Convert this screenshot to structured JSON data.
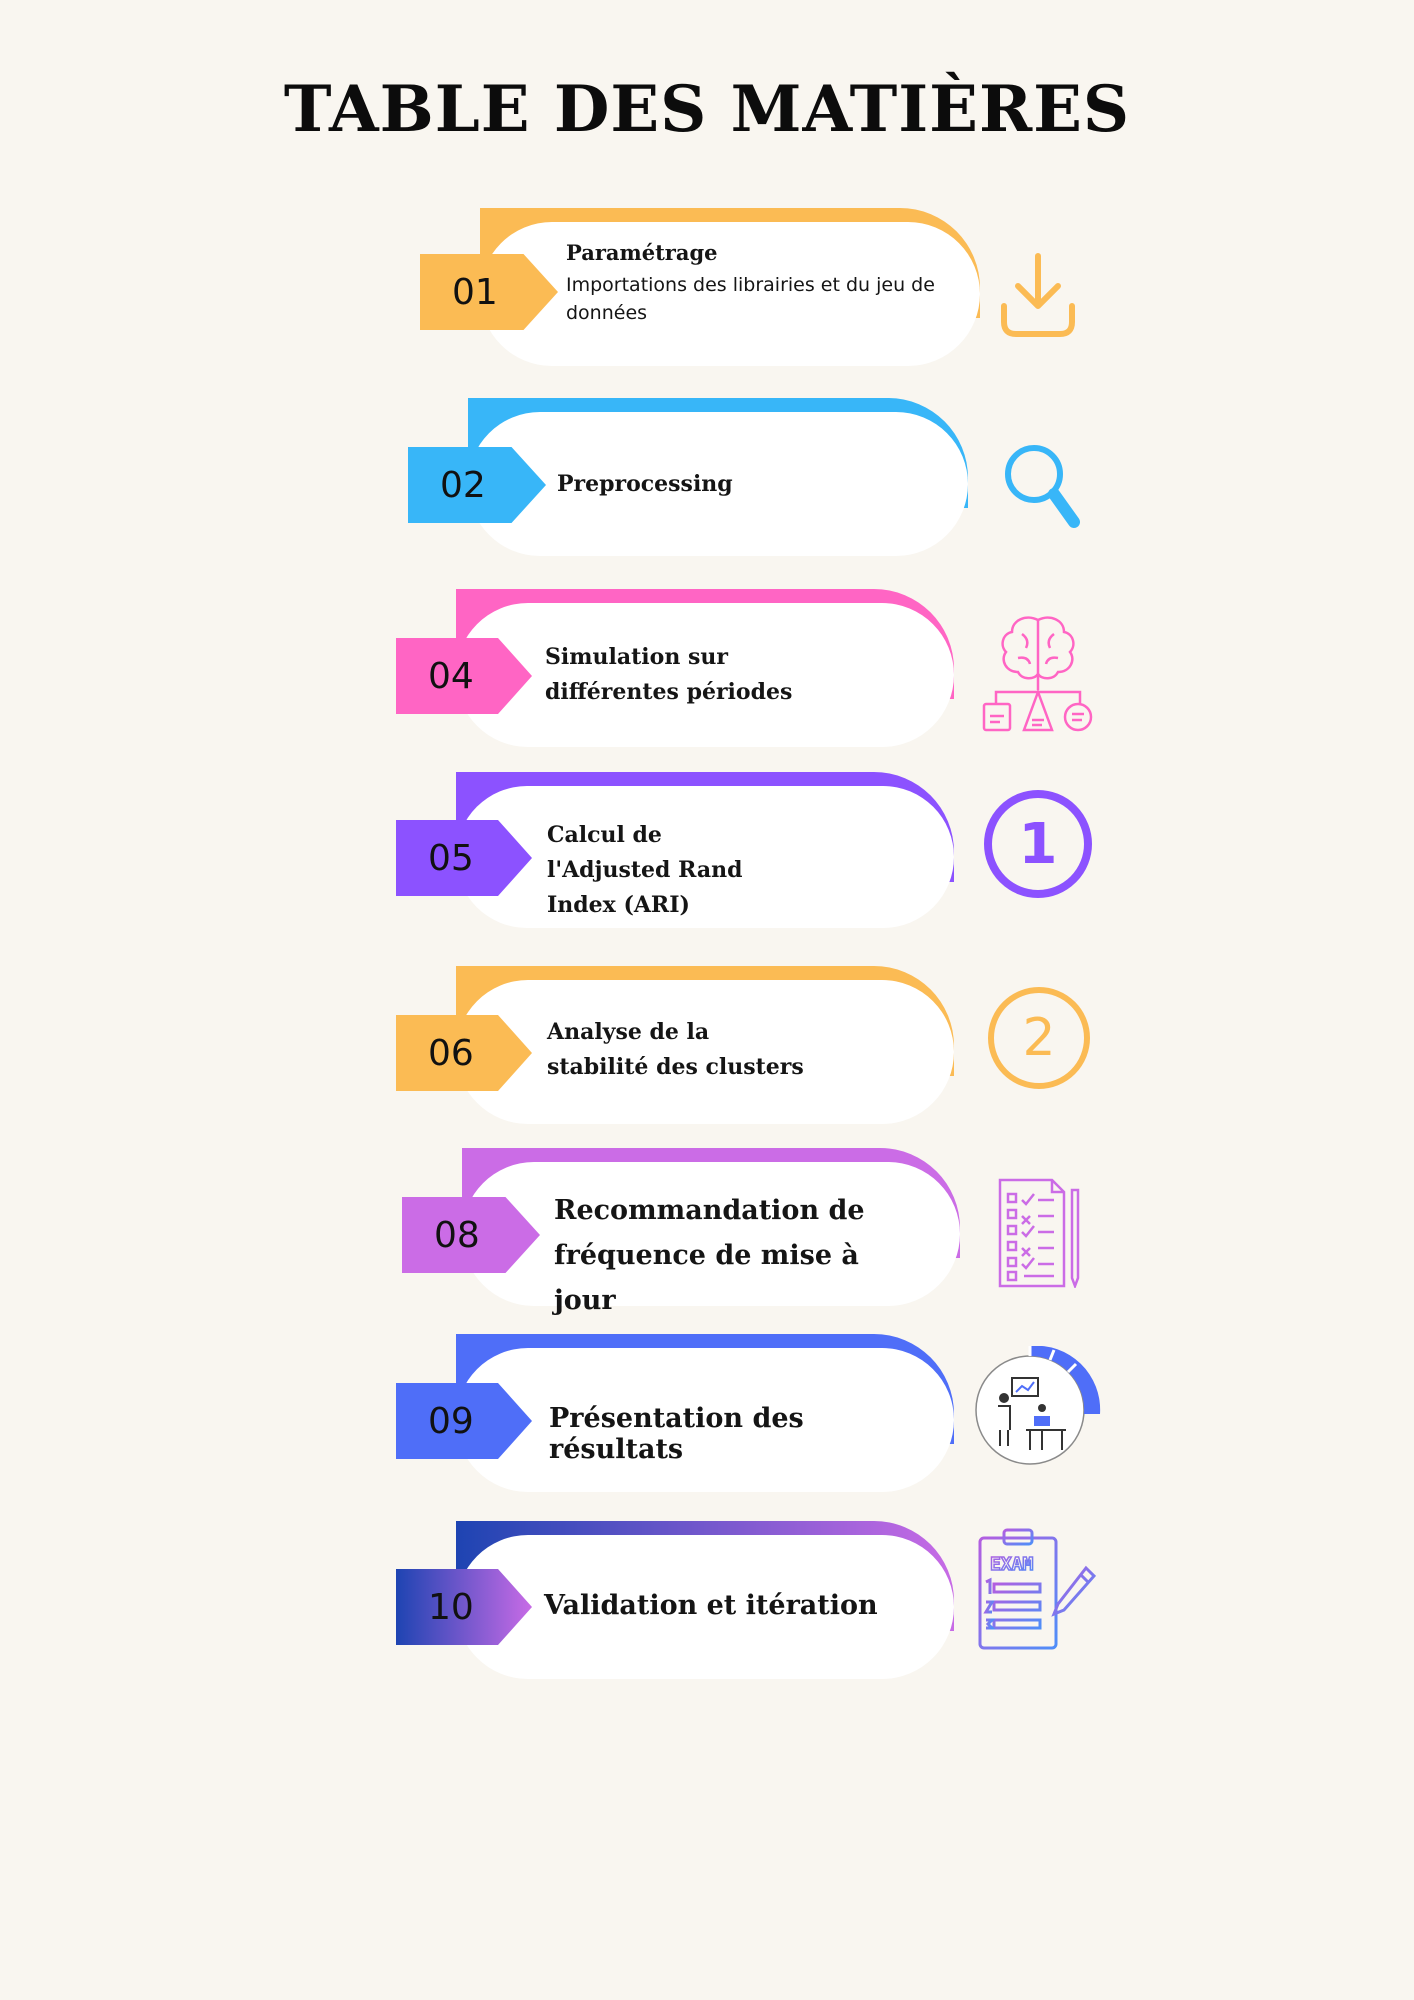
{
  "title": "TABLE DES MATIÈRES",
  "items": [
    {
      "number": "01",
      "heading": "Paramétrage",
      "subtitle": "Importations des librairies et du jeu de données",
      "color": "#fbbb54",
      "icon": "download-icon"
    },
    {
      "number": "02",
      "heading": "Preprocessing",
      "color": "#38b6f8",
      "icon": "search-icon"
    },
    {
      "number": "04",
      "heading": "Simulation sur différentes périodes",
      "color": "#ff65c4",
      "icon": "brain-diagram-icon"
    },
    {
      "number": "05",
      "heading": "Calcul de l'Adjusted Rand Index (ARI)",
      "color": "#8c52ff",
      "icon": "number-one-icon",
      "icon_text": "1"
    },
    {
      "number": "06",
      "heading": "Analyse de la stabilité des clusters",
      "color": "#fbbb54",
      "icon": "number-two-icon",
      "icon_text": "2"
    },
    {
      "number": "08",
      "heading": "Recommandation de fréquence de mise à jour",
      "color": "#cb6ce6",
      "icon": "checklist-icon"
    },
    {
      "number": "09",
      "heading": "Présentation des résultats",
      "color": "#4f6ef8",
      "icon": "presentation-chart-icon"
    },
    {
      "number": "10",
      "heading": "Validation et itération",
      "color": "#1e44b2",
      "color_end": "#c86be6",
      "icon": "exam-icon",
      "icon_text": "EXAM"
    }
  ]
}
